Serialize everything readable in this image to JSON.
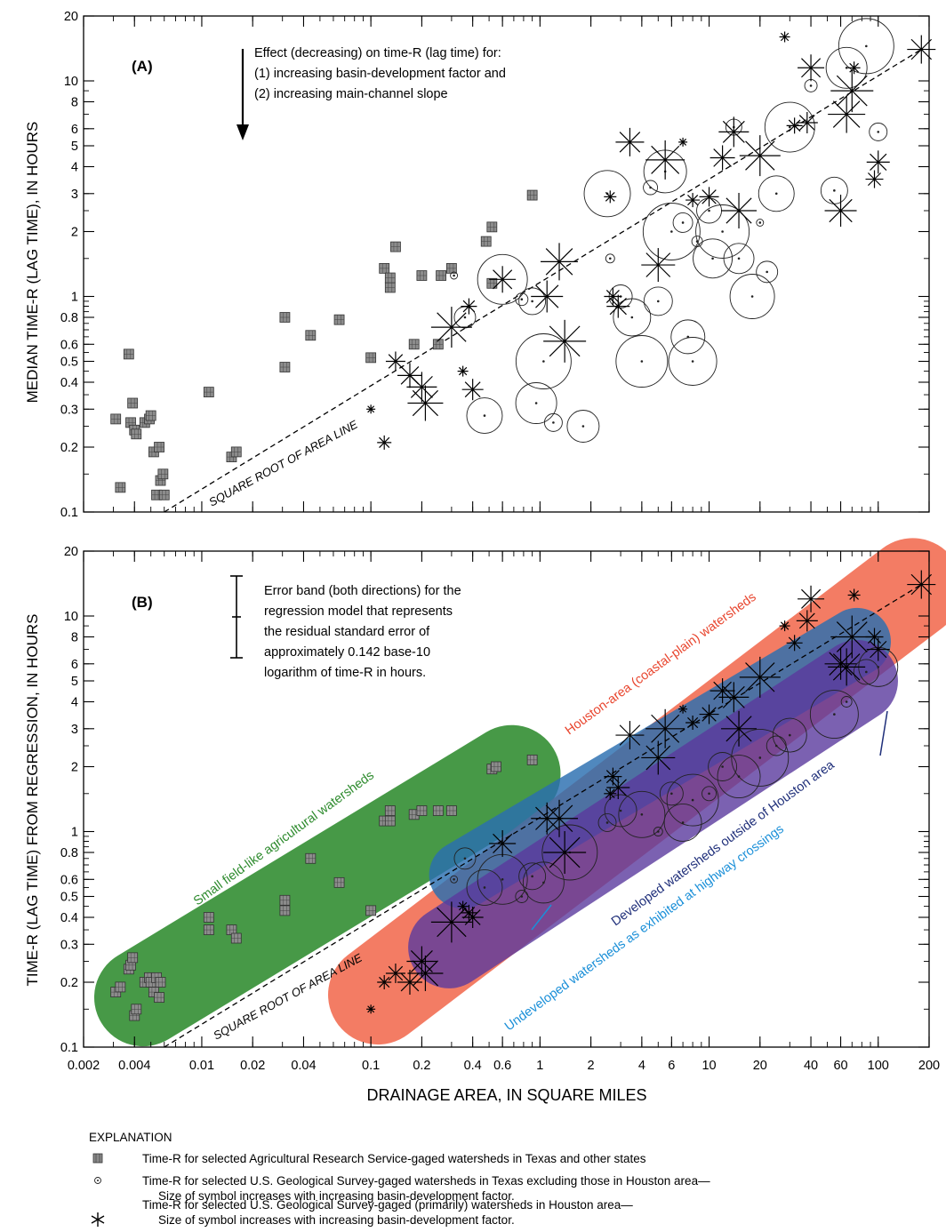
{
  "axes": {
    "x_label": "DRAINAGE AREA, IN SQUARE MILES",
    "x_ticks": [
      "0.002",
      "0.004",
      "0.01",
      "0.02",
      "0.04",
      "0.1",
      "0.2",
      "0.4",
      "0.6",
      "1",
      "2",
      "4",
      "6",
      "10",
      "20",
      "40",
      "60",
      "100",
      "200"
    ],
    "y_ticks": [
      "0.1",
      "0.2",
      "0.3",
      "0.4",
      "0.5",
      "0.6",
      "0.8",
      "1",
      "2",
      "3",
      "4",
      "5",
      "6",
      "8",
      "10",
      "20"
    ]
  },
  "panelA": {
    "letter": "(A)",
    "ylabel": "MEDIAN TIME-R (LAG TIME), IN HOURS",
    "note": [
      "Effect (decreasing) on time-R (lag time) for:",
      "(1) increasing basin-development factor and",
      "(2) increasing main-channel slope"
    ],
    "line_label": "SQUARE ROOT OF AREA LINE"
  },
  "panelB": {
    "letter": "(B)",
    "ylabel": "TIME-R (LAG TIME) FROM REGRESSION, IN HOURS",
    "note": [
      "Error band (both directions) for the",
      "regression model that represents",
      "the residual standard error of",
      "approximately 0.142 base-10",
      "logarithm of time-R in hours."
    ],
    "line_label": "SQUARE ROOT OF AREA LINE",
    "band_labels": {
      "agricultural": "Small field-like agricultural watersheds",
      "houston": "Houston-area (coastal-plain) watersheds",
      "developed": "Developed watersheds outside of Houston area",
      "undeveloped": "Undeveloped watersheds as exhibited at highway crossings"
    }
  },
  "legend": {
    "title": "EXPLANATION",
    "items": [
      {
        "lines": [
          "Time-R for selected Agricultural Research Service-gaged watersheds in Texas and other states"
        ]
      },
      {
        "lines": [
          "Time-R for selected U.S. Geological Survey-gaged watersheds in Texas excluding those in Houston area—",
          "Size of symbol increases with increasing basin-development factor."
        ]
      },
      {
        "lines": [
          "Time-R for selected U.S. Geological Survey-gaged (primarily) watersheds in Houston area—",
          "Size of symbol increases with increasing basin-development factor."
        ]
      }
    ]
  },
  "colors": {
    "agricultural": "#2e8b2e",
    "houston": "#f26a4f",
    "developed": "#2a6fb0",
    "undeveloped": "#5b3a9e",
    "undeveloped_label": "#1a8fd8",
    "developed_label": "#1f2f7a",
    "houston_label": "#e8452e",
    "agricultural_label": "#2e8b2e"
  },
  "chart_data": [
    {
      "type": "scatter",
      "panel": "A",
      "x_scale": "log",
      "y_scale": "log",
      "xlim": [
        0.002,
        200
      ],
      "ylim": [
        0.1,
        20
      ],
      "reference_line": {
        "name": "SQUARE ROOT OF AREA LINE",
        "x": [
          0.006,
          180
        ],
        "y": [
          0.1,
          14
        ]
      },
      "series": [
        {
          "name": "Agricultural Research Service-gaged watersheds",
          "marker": "square",
          "points": [
            [
              0.0031,
              0.27
            ],
            [
              0.0033,
              0.13
            ],
            [
              0.0037,
              0.54
            ],
            [
              0.0038,
              0.26
            ],
            [
              0.0039,
              0.32
            ],
            [
              0.004,
              0.24
            ],
            [
              0.0041,
              0.23
            ],
            [
              0.0046,
              0.26
            ],
            [
              0.0049,
              0.27
            ],
            [
              0.005,
              0.28
            ],
            [
              0.0052,
              0.19
            ],
            [
              0.0054,
              0.12
            ],
            [
              0.0056,
              0.2
            ],
            [
              0.0057,
              0.14
            ],
            [
              0.0059,
              0.15
            ],
            [
              0.006,
              0.12
            ],
            [
              0.011,
              0.36
            ],
            [
              0.015,
              0.18
            ],
            [
              0.016,
              0.19
            ],
            [
              0.031,
              0.8
            ],
            [
              0.031,
              0.47
            ],
            [
              0.044,
              0.66
            ],
            [
              0.065,
              0.78
            ],
            [
              0.1,
              0.52
            ],
            [
              0.12,
              1.35
            ],
            [
              0.13,
              1.1
            ],
            [
              0.13,
              1.22
            ],
            [
              0.14,
              1.7
            ],
            [
              0.18,
              0.6
            ],
            [
              0.2,
              1.25
            ],
            [
              0.25,
              0.6
            ],
            [
              0.26,
              1.25
            ],
            [
              0.3,
              1.35
            ],
            [
              0.48,
              1.8
            ],
            [
              0.52,
              2.1
            ],
            [
              0.52,
              1.15
            ],
            [
              0.9,
              2.95
            ]
          ]
        },
        {
          "name": "USGS-gaged watersheds in Texas excluding Houston area",
          "marker": "circle",
          "points": [
            [
              0.31,
              1.25
            ],
            [
              0.36,
              0.8
            ],
            [
              0.47,
              0.28
            ],
            [
              0.6,
              1.2
            ],
            [
              0.78,
              0.97
            ],
            [
              0.9,
              0.95
            ],
            [
              0.95,
              0.32
            ],
            [
              1.05,
              0.5
            ],
            [
              1.2,
              0.26
            ],
            [
              1.8,
              0.25
            ],
            [
              2.5,
              3.0
            ],
            [
              2.6,
              1.5
            ],
            [
              3.0,
              1.0
            ],
            [
              3.5,
              0.8
            ],
            [
              4.0,
              0.5
            ],
            [
              4.5,
              3.2
            ],
            [
              5.0,
              0.95
            ],
            [
              5.5,
              3.8
            ],
            [
              6.0,
              2.0
            ],
            [
              7.0,
              2.2
            ],
            [
              7.5,
              0.65
            ],
            [
              8.0,
              0.5
            ],
            [
              8.5,
              1.8
            ],
            [
              10.0,
              2.5
            ],
            [
              10.5,
              1.5
            ],
            [
              12.0,
              2.0
            ],
            [
              14.0,
              6.1
            ],
            [
              15.0,
              1.5
            ],
            [
              18.0,
              1.0
            ],
            [
              20.0,
              2.2
            ],
            [
              22.0,
              1.3
            ],
            [
              25.0,
              3.0
            ],
            [
              30.0,
              6.1
            ],
            [
              40.0,
              9.5
            ],
            [
              55.0,
              3.1
            ],
            [
              65.0,
              11.5
            ],
            [
              85.0,
              14.5
            ],
            [
              100.0,
              5.8
            ]
          ]
        },
        {
          "name": "USGS-gaged (primarily) watersheds in Houston area",
          "marker": "star",
          "points": [
            [
              0.1,
              0.3
            ],
            [
              0.12,
              0.21
            ],
            [
              0.14,
              0.5
            ],
            [
              0.17,
              0.43
            ],
            [
              0.2,
              0.38
            ],
            [
              0.21,
              0.32
            ],
            [
              0.3,
              0.72
            ],
            [
              0.35,
              0.45
            ],
            [
              0.38,
              0.9
            ],
            [
              0.4,
              0.37
            ],
            [
              0.6,
              1.2
            ],
            [
              1.1,
              1.0
            ],
            [
              1.3,
              1.45
            ],
            [
              1.4,
              0.62
            ],
            [
              2.6,
              2.9
            ],
            [
              2.7,
              1.0
            ],
            [
              2.9,
              0.9
            ],
            [
              3.4,
              5.2
            ],
            [
              5.0,
              1.4
            ],
            [
              5.5,
              4.3
            ],
            [
              7.0,
              5.2
            ],
            [
              8.0,
              2.8
            ],
            [
              10.0,
              2.9
            ],
            [
              12.0,
              4.4
            ],
            [
              14.0,
              5.8
            ],
            [
              15.0,
              2.5
            ],
            [
              20.0,
              4.5
            ],
            [
              28.0,
              16.0
            ],
            [
              32.0,
              6.2
            ],
            [
              38.0,
              6.4
            ],
            [
              40.0,
              11.5
            ],
            [
              60.0,
              2.5
            ],
            [
              65.0,
              7.0
            ],
            [
              70.0,
              9.0
            ],
            [
              72.0,
              11.5
            ],
            [
              95.0,
              3.5
            ],
            [
              100.0,
              4.2
            ],
            [
              180.0,
              14.0
            ]
          ]
        }
      ]
    },
    {
      "type": "scatter",
      "panel": "B",
      "x_scale": "log",
      "y_scale": "log",
      "xlim": [
        0.002,
        200
      ],
      "ylim": [
        0.1,
        20
      ],
      "reference_line": {
        "name": "SQUARE ROOT OF AREA LINE",
        "x": [
          0.006,
          180
        ],
        "y": [
          0.1,
          14
        ]
      },
      "series": [
        {
          "name": "Agricultural Research Service-gaged watersheds",
          "marker": "square",
          "points": [
            [
              0.0031,
              0.18
            ],
            [
              0.0033,
              0.19
            ],
            [
              0.0037,
              0.23
            ],
            [
              0.0038,
              0.24
            ],
            [
              0.0039,
              0.26
            ],
            [
              0.004,
              0.14
            ],
            [
              0.0041,
              0.15
            ],
            [
              0.0046,
              0.2
            ],
            [
              0.0049,
              0.21
            ],
            [
              0.005,
              0.2
            ],
            [
              0.0052,
              0.18
            ],
            [
              0.0054,
              0.21
            ],
            [
              0.0056,
              0.17
            ],
            [
              0.0057,
              0.2
            ],
            [
              0.011,
              0.4
            ],
            [
              0.011,
              0.35
            ],
            [
              0.015,
              0.35
            ],
            [
              0.016,
              0.32
            ],
            [
              0.031,
              0.48
            ],
            [
              0.031,
              0.43
            ],
            [
              0.044,
              0.75
            ],
            [
              0.065,
              0.58
            ],
            [
              0.1,
              0.43
            ],
            [
              0.12,
              1.12
            ],
            [
              0.13,
              1.25
            ],
            [
              0.13,
              1.12
            ],
            [
              0.18,
              1.2
            ],
            [
              0.2,
              1.25
            ],
            [
              0.25,
              1.25
            ],
            [
              0.3,
              1.25
            ],
            [
              0.52,
              1.95
            ],
            [
              0.55,
              2.0
            ],
            [
              0.9,
              2.15
            ]
          ]
        },
        {
          "name": "USGS-gaged watersheds in Texas excluding Houston area",
          "marker": "circle",
          "points": [
            [
              0.31,
              0.6
            ],
            [
              0.36,
              0.75
            ],
            [
              0.47,
              0.55
            ],
            [
              0.6,
              0.6
            ],
            [
              0.78,
              0.5
            ],
            [
              0.9,
              0.62
            ],
            [
              1.05,
              0.58
            ],
            [
              1.5,
              0.8
            ],
            [
              2.5,
              1.1
            ],
            [
              3.0,
              1.25
            ],
            [
              4.0,
              1.2
            ],
            [
              5.0,
              1.0
            ],
            [
              6.0,
              1.5
            ],
            [
              7.0,
              1.1
            ],
            [
              8.0,
              1.4
            ],
            [
              10.0,
              1.5
            ],
            [
              12.0,
              2.0
            ],
            [
              15.0,
              1.8
            ],
            [
              20.0,
              2.2
            ],
            [
              25.0,
              2.5
            ],
            [
              30.0,
              2.8
            ],
            [
              55.0,
              3.5
            ],
            [
              65.0,
              4.0
            ],
            [
              85.0,
              5.5
            ],
            [
              100.0,
              5.8
            ]
          ]
        },
        {
          "name": "USGS-gaged (primarily) watersheds in Houston area",
          "marker": "star",
          "points": [
            [
              0.1,
              0.15
            ],
            [
              0.12,
              0.2
            ],
            [
              0.14,
              0.22
            ],
            [
              0.17,
              0.2
            ],
            [
              0.2,
              0.25
            ],
            [
              0.21,
              0.22
            ],
            [
              0.3,
              0.38
            ],
            [
              0.35,
              0.45
            ],
            [
              0.38,
              0.42
            ],
            [
              0.4,
              0.4
            ],
            [
              0.6,
              0.88
            ],
            [
              1.1,
              1.15
            ],
            [
              1.3,
              1.15
            ],
            [
              1.4,
              0.8
            ],
            [
              2.6,
              1.5
            ],
            [
              2.7,
              1.8
            ],
            [
              2.9,
              1.6
            ],
            [
              3.4,
              2.8
            ],
            [
              5.0,
              2.2
            ],
            [
              5.5,
              3.0
            ],
            [
              7.0,
              3.7
            ],
            [
              8.0,
              3.2
            ],
            [
              10.0,
              3.5
            ],
            [
              12.0,
              4.5
            ],
            [
              14.0,
              4.2
            ],
            [
              15.0,
              3.0
            ],
            [
              20.0,
              5.2
            ],
            [
              28.0,
              9.0
            ],
            [
              32.0,
              7.5
            ],
            [
              38.0,
              9.5
            ],
            [
              40.0,
              12.0
            ],
            [
              60.0,
              6.0
            ],
            [
              65.0,
              5.8
            ],
            [
              70.0,
              8.0
            ],
            [
              72.0,
              12.5
            ],
            [
              95.0,
              8.0
            ],
            [
              100.0,
              7.0
            ],
            [
              180.0,
              14.0
            ]
          ]
        }
      ]
    }
  ]
}
